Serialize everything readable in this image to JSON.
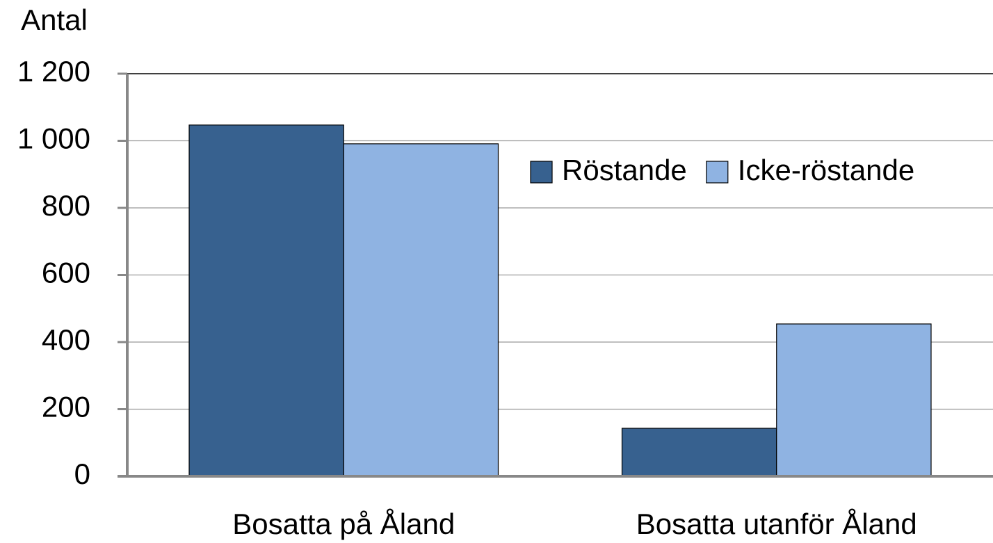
{
  "chart_data": {
    "type": "bar",
    "y_label": "Antal",
    "categories": [
      "Bosatta på Åland",
      "Bosatta utanför Åland"
    ],
    "series": [
      {
        "name": "Röstande",
        "color": "#37618f",
        "values": [
          1047,
          143
        ]
      },
      {
        "name": "Icke-röstande",
        "color": "#8fb3e2",
        "values": [
          991,
          454
        ]
      }
    ],
    "ylim": [
      0,
      1200
    ],
    "yticks": [
      0,
      200,
      400,
      600,
      800,
      {
        "value": 1000,
        "label": "1 000"
      },
      {
        "value": 1200,
        "label": "1 200"
      }
    ],
    "grid": true,
    "legend": "upper right"
  }
}
